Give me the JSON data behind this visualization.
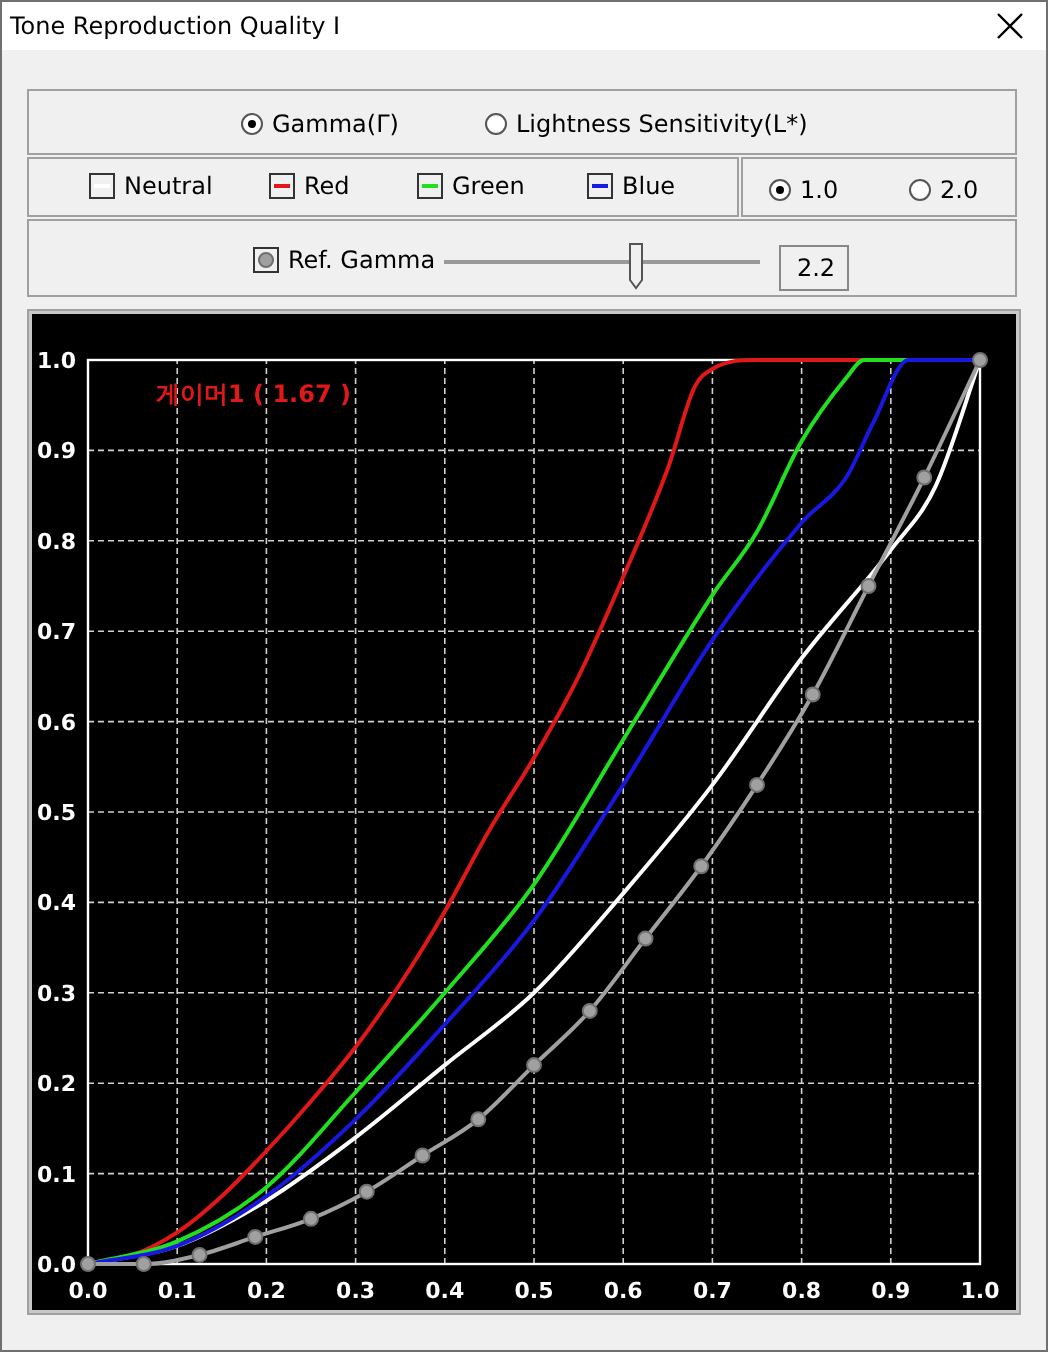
{
  "chart_data": {
    "type": "line",
    "title": "Tone Reproduction Quality I",
    "annotations": [
      "Gamma(Γ)",
      "Lightness Sensitivity(L*)",
      "1.0",
      "2.0",
      "2.2",
      "게이머1 ( 1.67 )"
    ],
    "xlim": [
      0,
      1
    ],
    "ylim": [
      0,
      1
    ],
    "xticks": [
      {
        "value": 0,
        "label": "0.0"
      },
      0.1,
      0.2,
      0.3,
      0.4,
      0.5,
      0.6,
      0.7,
      0.8,
      0.9,
      {
        "value": 1,
        "label": "1.0"
      }
    ],
    "yticks": [
      {
        "value": 0,
        "label": "0.0"
      },
      0.1,
      0.2,
      0.3,
      0.4,
      0.5,
      0.6,
      0.7,
      0.8,
      0.9,
      {
        "value": 1,
        "label": "1.0"
      }
    ],
    "grid": true,
    "legend": "top",
    "line_style": "solid",
    "series": [
      {
        "name": "Neutral",
        "color": "#ffffff",
        "marker": "none",
        "x": [
          0,
          0.1,
          0.2,
          0.3,
          0.4,
          0.5,
          0.6,
          0.7,
          0.8,
          0.9,
          0.95,
          1
        ],
        "values": [
          0,
          0.02,
          0.07,
          0.14,
          0.22,
          0.3,
          0.41,
          0.53,
          0.67,
          0.79,
          0.86,
          1
        ]
      },
      {
        "name": "Red",
        "color": "#e01818",
        "marker": "none",
        "x": [
          0,
          0.05,
          0.1,
          0.15,
          0.2,
          0.25,
          0.3,
          0.35,
          0.4,
          0.45,
          0.5,
          0.55,
          0.6,
          0.65,
          0.68,
          0.7,
          0.75,
          1
        ],
        "values": [
          0,
          0.01,
          0.035,
          0.075,
          0.125,
          0.18,
          0.24,
          0.31,
          0.39,
          0.48,
          0.56,
          0.65,
          0.76,
          0.88,
          0.97,
          0.99,
          1,
          1
        ]
      },
      {
        "name": "Green",
        "color": "#20e020",
        "marker": "none",
        "x": [
          0,
          0.1,
          0.2,
          0.3,
          0.4,
          0.5,
          0.6,
          0.7,
          0.75,
          0.8,
          0.85,
          0.87,
          1
        ],
        "values": [
          0,
          0.025,
          0.085,
          0.19,
          0.3,
          0.42,
          0.58,
          0.74,
          0.81,
          0.91,
          0.98,
          1,
          1
        ]
      },
      {
        "name": "Blue",
        "color": "#1818e0",
        "marker": "none",
        "x": [
          0,
          0.1,
          0.2,
          0.3,
          0.4,
          0.5,
          0.6,
          0.7,
          0.8,
          0.85,
          0.88,
          0.92,
          1
        ],
        "values": [
          0,
          0.02,
          0.075,
          0.16,
          0.265,
          0.38,
          0.53,
          0.69,
          0.82,
          0.87,
          0.93,
          1,
          1
        ]
      },
      {
        "name": "Ref. Gamma",
        "color": "#a0a0a0",
        "marker": "circle",
        "x": [
          0,
          0.0625,
          0.125,
          0.1875,
          0.25,
          0.3125,
          0.375,
          0.4375,
          0.5,
          0.5625,
          0.625,
          0.6875,
          0.75,
          0.8125,
          0.875,
          0.9375,
          1
        ],
        "values": [
          0,
          0,
          0.01,
          0.03,
          0.05,
          0.08,
          0.12,
          0.16,
          0.22,
          0.28,
          0.36,
          0.44,
          0.53,
          0.63,
          0.75,
          0.87,
          1
        ]
      }
    ]
  }
}
